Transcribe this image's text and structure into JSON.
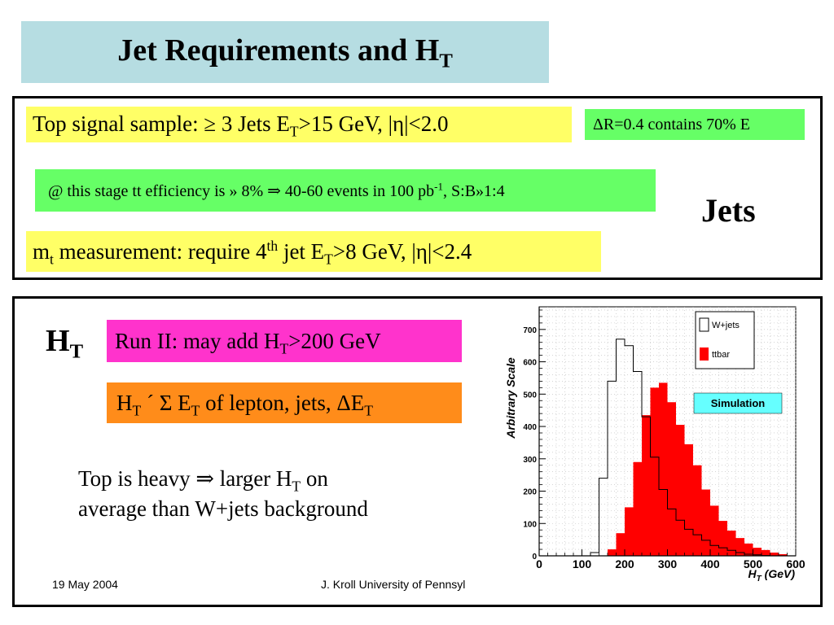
{
  "title": {
    "main": "Jet Requirements and H",
    "sub": "T"
  },
  "jets_panel": {
    "top_signal": {
      "prefix": "Top signal sample: ≥ 3 Jets E",
      "sub": "T",
      "suffix": ">15 GeV, |η|<2.0"
    },
    "delta_r": "ΔR=0.4 contains 70% E",
    "efficiency": {
      "prefix": "@ this stage tt efficiency is » 8% ⇒ 40-60 events in 100 pb",
      "sup": "-1",
      "suffix": ", S:B»1:4"
    },
    "jets_label": "Jets",
    "mt_measure": {
      "m": "m",
      "m_sub": "t",
      "mid": " measurement: require 4",
      "sup": "th",
      "mid2": " jet E",
      "sub2": "T",
      "suffix": ">8 GeV, |η|<2.4"
    }
  },
  "ht_panel": {
    "ht_label": {
      "main": "H",
      "sub": "T"
    },
    "run2": {
      "prefix": "Run II: may add H",
      "sub": "T",
      "suffix": ">200 GeV"
    },
    "ht_def": {
      "h": "H",
      "h_sub": "T",
      "mid": " ´ Σ E",
      "e_sub": "T",
      "suffix": " of lepton, jets, ΔE",
      "end_sub": "T"
    },
    "heavy": {
      "line1_prefix": "Top is heavy ⇒ larger H",
      "line1_sub": "T",
      "line1_suffix": " on",
      "line2": "average than W+jets background"
    },
    "footer_date": "19 May 2004",
    "footer_author": "J. Kroll University of Pennsyl"
  },
  "colors": {
    "title_bg": "#b6dde2",
    "yellow": "#ffff66",
    "green": "#66ff66",
    "magenta": "#ff33cc",
    "orange": "#ff8c1a",
    "ttbar": "#ff0000",
    "simulation_bg": "#66ffff"
  },
  "chart_data": {
    "type": "histogram",
    "ylabel": "Arbitrary Scale",
    "xlabel_main": "H",
    "xlabel_sub": "T",
    "xlabel_unit": " (GeV)",
    "xlim": [
      0,
      600
    ],
    "ylim": [
      0,
      770
    ],
    "x_ticks": [
      0,
      100,
      200,
      300,
      400,
      500,
      600
    ],
    "y_ticks": [
      0,
      100,
      200,
      300,
      400,
      500,
      600,
      700
    ],
    "grid": true,
    "annotation": "Simulation",
    "bin_edges": [
      0,
      20,
      40,
      60,
      80,
      100,
      120,
      140,
      160,
      180,
      200,
      220,
      240,
      260,
      280,
      300,
      320,
      340,
      360,
      380,
      400,
      420,
      440,
      460,
      480,
      500,
      520,
      540,
      560,
      580,
      600
    ],
    "series": [
      {
        "name": "W+jets",
        "style": "outline",
        "color": "#000000",
        "values": [
          0,
          0,
          0,
          0,
          0,
          0,
          10,
          240,
          540,
          670,
          650,
          570,
          430,
          305,
          205,
          145,
          110,
          82,
          65,
          48,
          32,
          25,
          17,
          10,
          5,
          3,
          1,
          0,
          0,
          0
        ]
      },
      {
        "name": "ttbar",
        "style": "filled",
        "color": "#ff0000",
        "values": [
          0,
          0,
          0,
          0,
          0,
          0,
          0,
          0,
          20,
          70,
          150,
          290,
          435,
          520,
          535,
          475,
          405,
          345,
          280,
          205,
          155,
          108,
          78,
          55,
          38,
          25,
          18,
          10,
          5,
          0
        ]
      }
    ]
  }
}
